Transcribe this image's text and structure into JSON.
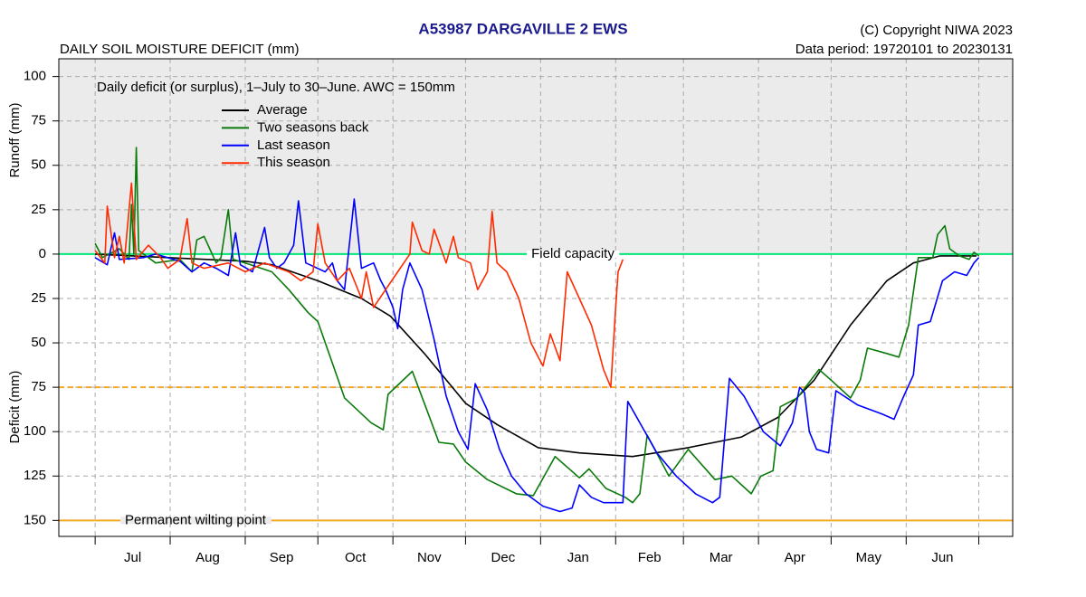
{
  "chart_data": {
    "type": "line",
    "title": "A53987  DARGAVILLE 2 EWS",
    "copyright": "(C) Copyright NIWA  2023",
    "subtitle": "DAILY SOIL MOISTURE DEFICIT (mm)",
    "data_period": "Data period:  19720101  to  20230131",
    "note": "Daily deficit (or surplus), 1–July to 30–June.  AWC = 150mm",
    "y_label_upper": "Runoff (mm)",
    "y_label_lower": "Deficit (mm)",
    "categories": [
      "Jul",
      "Aug",
      "Sep",
      "Oct",
      "Nov",
      "Dec",
      "Jan",
      "Feb",
      "Mar",
      "Apr",
      "May",
      "Jun"
    ],
    "xlim": [
      -15,
      379
    ],
    "xticks": [
      0,
      31,
      62,
      92,
      123,
      153,
      184,
      215,
      243,
      274,
      304,
      335,
      365
    ],
    "ylim": [
      -159,
      110
    ],
    "yticks": [
      {
        "value": -150,
        "label": "150"
      },
      {
        "value": -125,
        "label": "125"
      },
      {
        "value": -100,
        "label": "100"
      },
      {
        "value": -75,
        "label": "75"
      },
      {
        "value": -50,
        "label": "50"
      },
      {
        "value": -25,
        "label": "25"
      },
      0,
      25,
      50,
      75,
      100
    ],
    "grid": true,
    "reference_lines": [
      {
        "value": 0,
        "label": "Field capacity",
        "color": "#00e676"
      },
      {
        "value": -75,
        "color": "#f5a623"
      },
      {
        "value": -150,
        "label": "Permanent wilting point",
        "color": "#f5a623"
      }
    ],
    "series": [
      {
        "name": "Average",
        "color": "#000000",
        "x": [
          0,
          30,
          62,
          73,
          92,
          110,
          122,
          136,
          153,
          166,
          183,
          200,
          222,
          245,
          267,
          282,
          297,
          312,
          327,
          338,
          349,
          364
        ],
        "values": [
          0,
          -2,
          -4,
          -6,
          -15,
          -25,
          -35,
          -56,
          -84,
          -96,
          -109,
          -112,
          -114,
          -109,
          -103,
          -92,
          -71,
          -40,
          -15,
          -5,
          -1,
          -1
        ]
      },
      {
        "name": "Two seasons back",
        "color": "#0a7a0a",
        "x": [
          0,
          3,
          10,
          14,
          15,
          16,
          17,
          18,
          25,
          35,
          40,
          42,
          45,
          50,
          52,
          55,
          57,
          62,
          73,
          80,
          88,
          92,
          103,
          114,
          119,
          121,
          131,
          136,
          142,
          148,
          153,
          162,
          174,
          181,
          190,
          200,
          204,
          211,
          219,
          222,
          225,
          228,
          237,
          245,
          256,
          263,
          271,
          275,
          280,
          283,
          290,
          299,
          304,
          312,
          316,
          319,
          327,
          332,
          336,
          340,
          346,
          348,
          351,
          353,
          357,
          361,
          363,
          365
        ],
        "values": [
          6,
          -2,
          3,
          -3,
          28,
          0,
          60,
          2,
          -5,
          -3,
          -10,
          8,
          10,
          -5,
          -2,
          25,
          -3,
          -5,
          -10,
          -20,
          -33,
          -38,
          -81,
          -95,
          -99,
          -79,
          -66,
          -84,
          -106,
          -107,
          -117,
          -127,
          -135,
          -136,
          -114,
          -126,
          -121,
          -132,
          -137,
          -140,
          -135,
          -102,
          -125,
          -110,
          -127,
          -125,
          -135,
          -125,
          -122,
          -86,
          -81,
          -65,
          -71,
          -81,
          -71,
          -53,
          -56,
          -58,
          -40,
          -2,
          -2,
          11,
          16,
          3,
          -1,
          -3,
          1,
          -1
        ]
      },
      {
        "name": "Last season",
        "color": "#0000ff",
        "x": [
          0,
          5,
          8,
          10,
          20,
          25,
          35,
          40,
          45,
          50,
          55,
          58,
          60,
          65,
          70,
          72,
          75,
          78,
          82,
          84,
          87,
          95,
          98,
          100,
          103,
          107,
          110,
          115,
          118,
          120,
          123,
          125,
          127,
          130,
          135,
          140,
          145,
          150,
          154,
          157,
          162,
          167,
          172,
          178,
          185,
          192,
          197,
          200,
          205,
          210,
          218,
          220,
          225,
          232,
          240,
          248,
          255,
          258,
          262,
          268,
          276,
          283,
          288,
          291,
          293,
          295,
          298,
          303,
          306,
          315,
          325,
          330,
          334,
          338,
          340,
          345,
          350,
          355,
          360,
          363,
          365
        ],
        "values": [
          -2,
          -6,
          12,
          -3,
          -2,
          0,
          -4,
          -10,
          -5,
          -8,
          -12,
          12,
          -6,
          -10,
          15,
          -2,
          -8,
          -5,
          5,
          30,
          -5,
          -10,
          -5,
          -15,
          -20,
          31,
          -8,
          -5,
          -15,
          -20,
          -30,
          -42,
          -20,
          -5,
          -20,
          -48,
          -80,
          -100,
          -110,
          -73,
          -88,
          -110,
          -125,
          -135,
          -142,
          -145,
          -143,
          -130,
          -137,
          -140,
          -140,
          -83,
          -95,
          -112,
          -125,
          -135,
          -140,
          -137,
          -70,
          -80,
          -100,
          -108,
          -95,
          -75,
          -78,
          -100,
          -110,
          -112,
          -77,
          -85,
          -90,
          -93,
          -80,
          -68,
          -40,
          -38,
          -15,
          -10,
          -12,
          -5,
          -2
        ]
      },
      {
        "name": "This season",
        "color": "#ff2a00",
        "x": [
          0,
          4,
          5,
          8,
          10,
          12,
          15,
          17,
          22,
          27,
          30,
          35,
          38,
          40,
          45,
          55,
          62,
          70,
          80,
          85,
          90,
          92,
          95,
          100,
          105,
          110,
          112,
          115,
          120,
          125,
          130,
          131,
          135,
          138,
          140,
          145,
          148,
          150,
          155,
          158,
          162,
          164,
          166,
          170,
          175,
          180,
          185,
          188,
          192,
          195,
          200,
          205,
          210,
          213,
          215,
          216,
          218
        ],
        "values": [
          2,
          -5,
          27,
          -2,
          10,
          -5,
          40,
          -3,
          5,
          -2,
          -8,
          -3,
          20,
          -5,
          -8,
          -5,
          -10,
          -5,
          -10,
          -15,
          -10,
          17,
          -5,
          -15,
          -8,
          -25,
          -10,
          -30,
          -20,
          -10,
          0,
          18,
          2,
          0,
          14,
          -5,
          10,
          -2,
          -5,
          -20,
          -10,
          24,
          -5,
          -10,
          -25,
          -50,
          -63,
          -45,
          -60,
          -10,
          -25,
          -40,
          -65,
          -75,
          -30,
          -10,
          -3
        ]
      }
    ]
  }
}
